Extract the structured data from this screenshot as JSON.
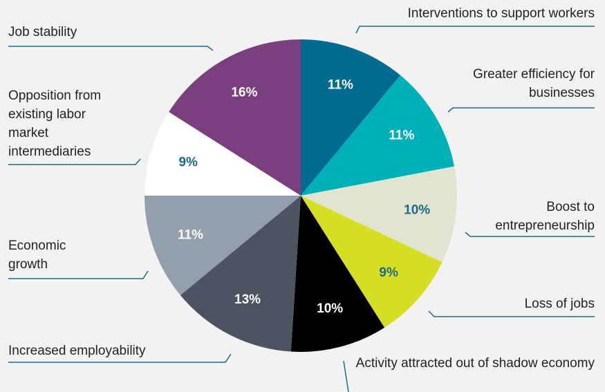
{
  "chart_data": {
    "type": "pie",
    "categories": [
      "Interventions to support workers",
      "Greater efficiency for businesses",
      "Boost to entrepreneurship",
      "Loss of jobs",
      "Activity attracted out of shadow economy",
      "Increased employability",
      "Economic growth",
      "Opposition from existing labor market intermediaries",
      "Job stability"
    ],
    "values": [
      11,
      11,
      10,
      9,
      10,
      13,
      11,
      9,
      16
    ],
    "value_labels": [
      "11%",
      "11%",
      "10%",
      "9%",
      "10%",
      "13%",
      "11%",
      "9%",
      "16%"
    ],
    "colors": [
      "#006b8f",
      "#00b0b9",
      "#e1e4cf",
      "#d6df23",
      "#000000",
      "#4d5461",
      "#949fae",
      "#ffffff",
      "#7b3f7f"
    ],
    "label_colors": [
      "#ffffff",
      "#ffffff",
      "#1a6a8a",
      "#1a6a8a",
      "#ffffff",
      "#ffffff",
      "#ffffff",
      "#1a6a8a",
      "#ffffff"
    ]
  }
}
